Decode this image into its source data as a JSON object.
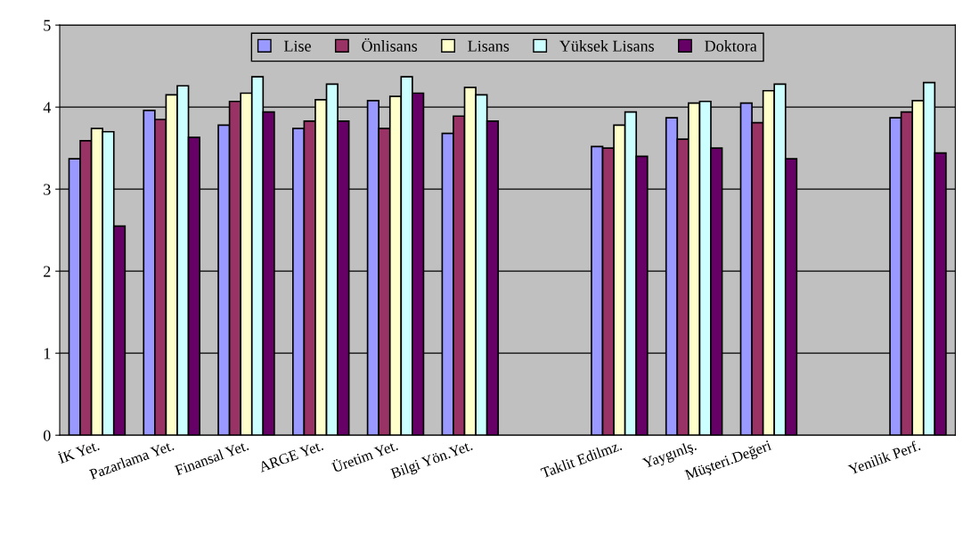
{
  "chart_data": {
    "type": "bar",
    "categories": [
      "İK Yet.",
      "Pazarlama Yet.",
      "Finansal Yet.",
      "ARGE Yet.",
      "Üretim Yet.",
      "Bilgi Yön.Yet.",
      null,
      "Taklit Edilmz.",
      "Yaygınlş.",
      "Müşteri.Değeri",
      null,
      "Yenilik Perf."
    ],
    "series": [
      {
        "name": "Lise",
        "color": "#9999ff",
        "values": [
          3.37,
          3.96,
          3.78,
          3.74,
          4.08,
          3.68,
          null,
          3.52,
          3.87,
          4.05,
          null,
          3.87
        ]
      },
      {
        "name": "Önlisans",
        "color": "#993366",
        "values": [
          3.59,
          3.85,
          4.07,
          3.83,
          3.74,
          3.89,
          null,
          3.5,
          3.61,
          3.81,
          null,
          3.94
        ]
      },
      {
        "name": "Lisans",
        "color": "#ffffcc",
        "values": [
          3.74,
          4.15,
          4.17,
          4.09,
          4.13,
          4.24,
          null,
          3.78,
          4.05,
          4.2,
          null,
          4.08
        ]
      },
      {
        "name": "Yüksek Lisans",
        "color": "#ccffff",
        "values": [
          3.7,
          4.26,
          4.37,
          4.28,
          4.37,
          4.15,
          null,
          3.94,
          4.07,
          4.28,
          null,
          4.3
        ]
      },
      {
        "name": "Doktora",
        "color": "#660066",
        "values": [
          2.55,
          3.63,
          3.94,
          3.83,
          4.17,
          3.83,
          null,
          3.4,
          3.5,
          3.37,
          null,
          3.44
        ]
      }
    ],
    "ylim": [
      0,
      5
    ],
    "yticks": [
      0,
      1,
      2,
      3,
      4,
      5
    ],
    "grid": "y",
    "legend": "top"
  }
}
